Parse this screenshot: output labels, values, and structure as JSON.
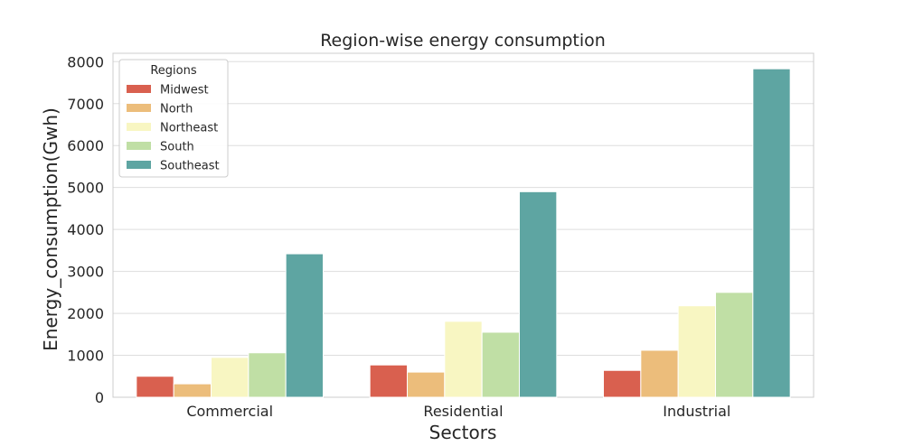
{
  "chart_data": {
    "type": "bar",
    "title": "Region-wise energy consumption",
    "xlabel": "Sectors",
    "ylabel": "Energy_consumption(Gwh)",
    "ylim": [
      0,
      8200
    ],
    "yticks": [
      "0",
      "1000",
      "2000",
      "3000",
      "4000",
      "5000",
      "6000",
      "7000",
      "8000"
    ],
    "categories": [
      "Commercial",
      "Residential",
      "Industrial"
    ],
    "legend_title": "Regions",
    "legend_position": "upper-left",
    "grid": true,
    "series": [
      {
        "name": "Midwest",
        "color": "#d9604f",
        "values": [
          500,
          770,
          640
        ]
      },
      {
        "name": "North",
        "color": "#ecbd7b",
        "values": [
          320,
          600,
          1120
        ]
      },
      {
        "name": "Northeast",
        "color": "#f8f6c2",
        "values": [
          950,
          1810,
          2180
        ]
      },
      {
        "name": "South",
        "color": "#c0dfa5",
        "values": [
          1060,
          1550,
          2500
        ]
      },
      {
        "name": "Southeast",
        "color": "#5ea5a2",
        "values": [
          3420,
          4900,
          7830
        ]
      }
    ]
  }
}
